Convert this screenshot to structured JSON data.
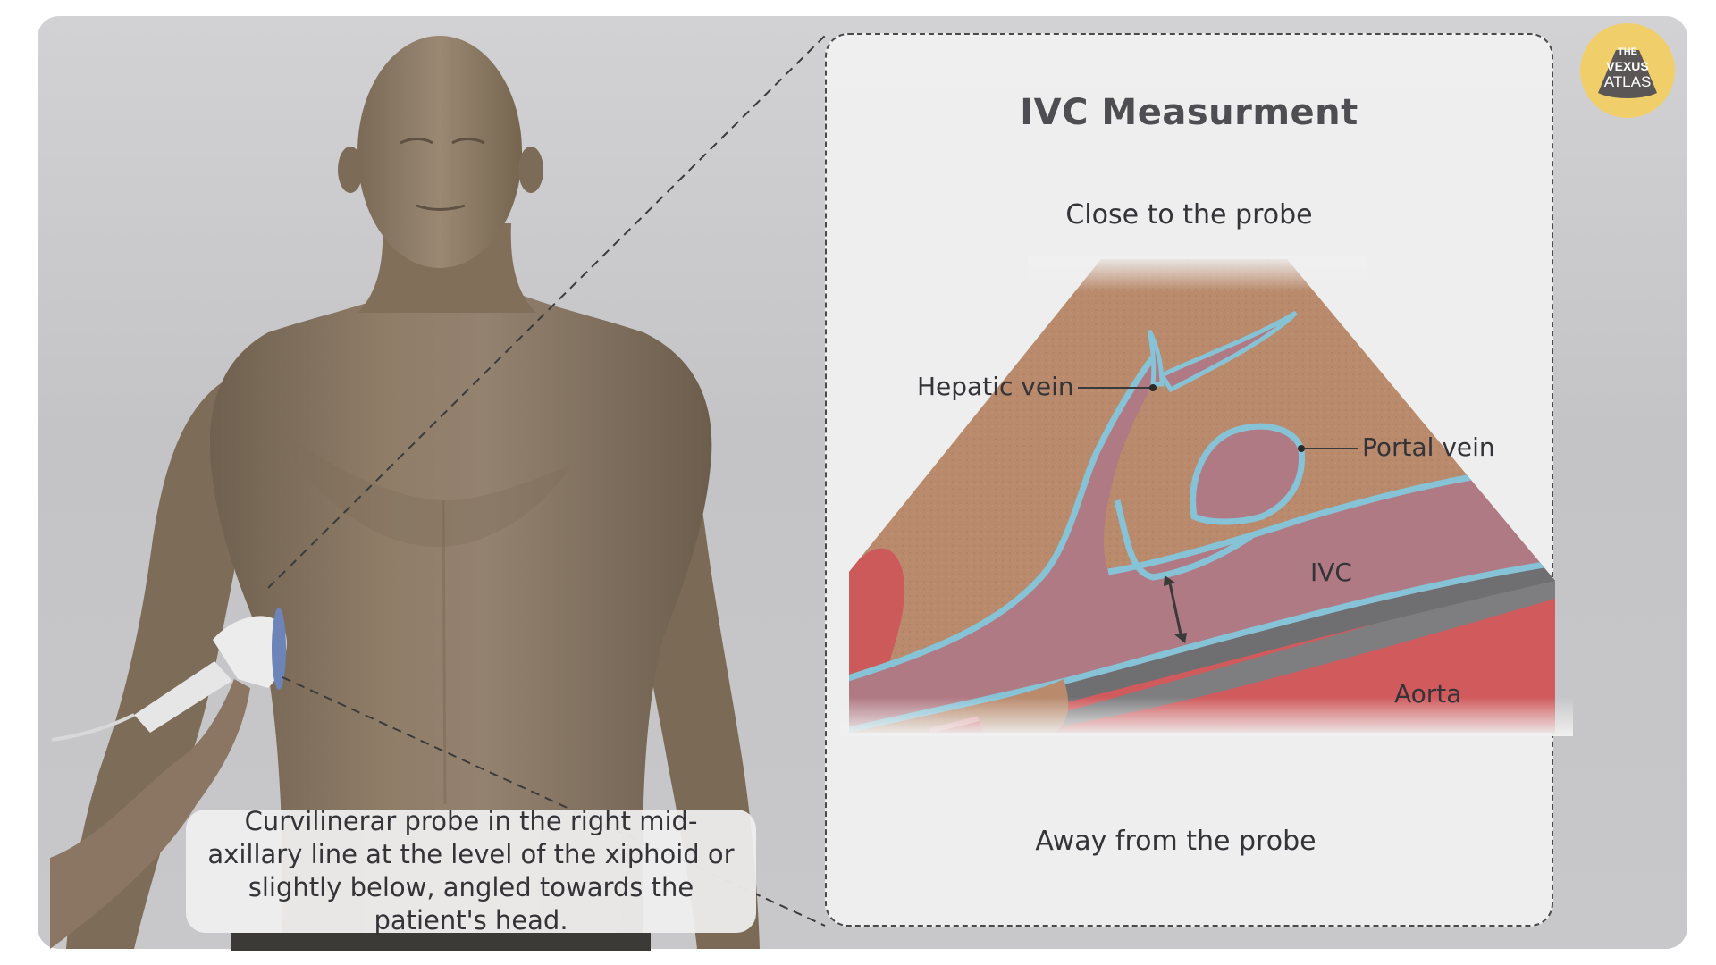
{
  "inset": {
    "title": "IVC Measurment",
    "top_label": "Close to the probe",
    "bottom_label": "Away from the probe"
  },
  "labels": {
    "hepatic_vein": "Hepatic vein",
    "portal_vein": "Portal vein",
    "ivc": "IVC",
    "aorta": "Aorta"
  },
  "caption": {
    "text": "Curvilinerar probe in the right mid-axillary line at the level of the xiphoid or slightly below, angled towards the patient's head."
  },
  "logo": {
    "line1": "THE",
    "line2": "VEXUS",
    "line3": "ATLAS"
  },
  "colors": {
    "liver": "#b98a6c",
    "vessel_fill": "#b07a84",
    "vessel_wall": "#86c3d6",
    "aorta": "#d05a5c",
    "skin": "#8c7a65",
    "logo": "#f0cf6a"
  },
  "icons": {
    "measurement": "double-arrow-icon",
    "probe": "ultrasound-probe-icon"
  }
}
